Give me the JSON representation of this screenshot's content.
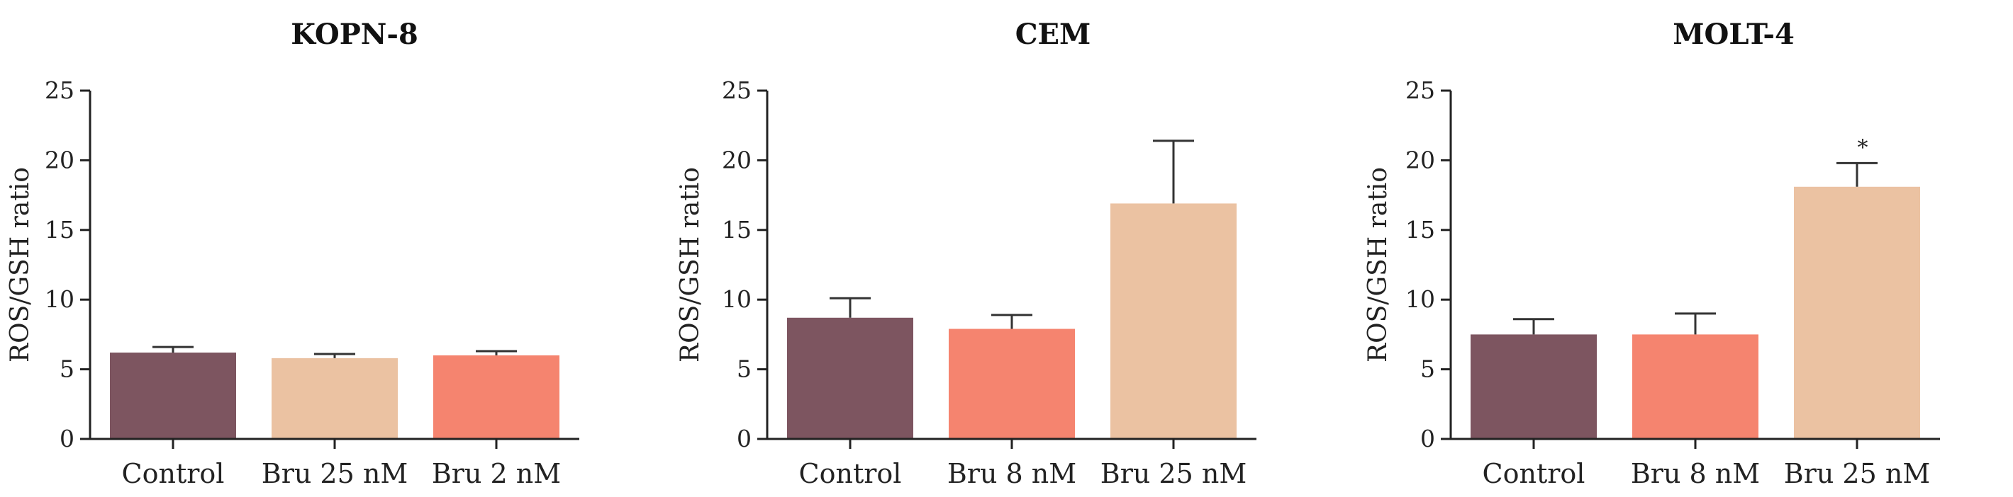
{
  "chart_data": [
    {
      "type": "bar",
      "title": "KOPN-8",
      "ylabel": "ROS/GSH ratio",
      "xlabel": "",
      "ylim": [
        0,
        25
      ],
      "yticks": [
        0,
        5,
        10,
        15,
        20,
        25
      ],
      "categories": [
        "Control",
        "Bru 25 nM",
        "Bru 2 nM"
      ],
      "values": [
        6.2,
        5.8,
        6.0
      ],
      "errors": [
        0.4,
        0.3,
        0.3
      ],
      "colors": [
        "#7d5560",
        "#ebc2a2",
        "#f5846f"
      ],
      "annotations": []
    },
    {
      "type": "bar",
      "title": "CEM",
      "ylabel": "ROS/GSH ratio",
      "xlabel": "",
      "ylim": [
        0,
        25
      ],
      "yticks": [
        0,
        5,
        10,
        15,
        20,
        25
      ],
      "categories": [
        "Control",
        "Bru 8 nM",
        "Bru 25 nM"
      ],
      "values": [
        8.7,
        7.9,
        16.9
      ],
      "errors": [
        1.4,
        1.0,
        4.5
      ],
      "colors": [
        "#7d5560",
        "#f5846f",
        "#ebc2a2"
      ],
      "annotations": []
    },
    {
      "type": "bar",
      "title": "MOLT-4",
      "ylabel": "ROS/GSH ratio",
      "xlabel": "",
      "ylim": [
        0,
        25
      ],
      "yticks": [
        0,
        5,
        10,
        15,
        20,
        25
      ],
      "categories": [
        "Control",
        "Bru 8 nM",
        "Bru 25 nM"
      ],
      "values": [
        7.5,
        7.5,
        18.1
      ],
      "errors": [
        1.1,
        1.5,
        1.7
      ],
      "colors": [
        "#7d5560",
        "#f5846f",
        "#ebc2a2"
      ],
      "annotations": [
        {
          "category": "Bru 25 nM",
          "text": "*"
        }
      ]
    }
  ]
}
